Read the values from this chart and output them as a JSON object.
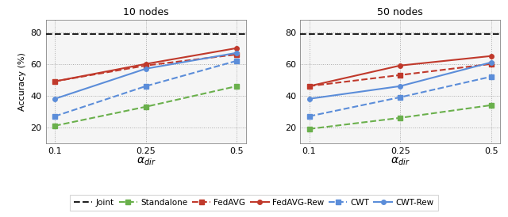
{
  "x_labels": [
    0.1,
    0.25,
    0.5
  ],
  "x_positions": [
    0,
    1,
    2
  ],
  "joint_line": 79,
  "panel1": {
    "title": "10 nodes",
    "standalone": [
      21,
      33,
      46
    ],
    "fedavg": [
      49,
      59,
      66
    ],
    "fedavg_rew": [
      49,
      60,
      70
    ],
    "cwt": [
      27,
      46,
      62
    ],
    "cwt_rew": [
      38,
      57,
      67
    ]
  },
  "panel2": {
    "title": "50 nodes",
    "standalone": [
      19,
      26,
      34
    ],
    "fedavg": [
      46,
      53,
      60
    ],
    "fedavg_rew": [
      46,
      59,
      65
    ],
    "cwt": [
      27,
      39,
      52
    ],
    "cwt_rew": [
      38,
      46,
      61
    ]
  },
  "colors": {
    "joint": "#222222",
    "standalone": "#6ab04c",
    "fedavg": "#c0392b",
    "fedavg_rew": "#c0392b",
    "cwt": "#5b8dd9",
    "cwt_rew": "#5b8dd9"
  },
  "ylim": [
    10,
    88
  ],
  "yticks": [
    20,
    40,
    60,
    80
  ],
  "xlabel": "$\\alpha_{dir}$",
  "ylabel": "Accuracy (%)",
  "bg_color": "#f5f5f5"
}
